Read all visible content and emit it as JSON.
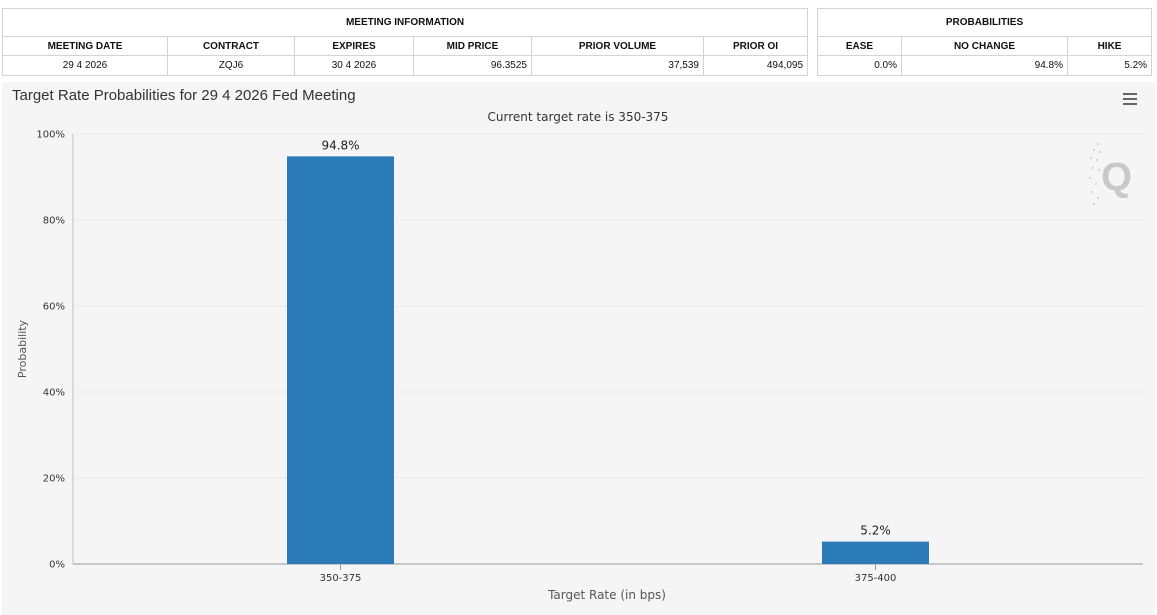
{
  "meeting_info": {
    "title": "MEETING INFORMATION",
    "columns": [
      "MEETING DATE",
      "CONTRACT",
      "EXPIRES",
      "MID PRICE",
      "PRIOR VOLUME",
      "PRIOR OI"
    ],
    "row": [
      "29 4 2026",
      "ZQJ6",
      "30 4 2026",
      "96.3525",
      "37,539",
      "494,095"
    ]
  },
  "probabilities": {
    "title": "PROBABILITIES",
    "columns": [
      "EASE",
      "NO CHANGE",
      "HIKE"
    ],
    "row": [
      "0.0%",
      "94.8%",
      "5.2%"
    ]
  },
  "chart_title": "Target Rate Probabilities for 29 4 2026 Fed Meeting",
  "watermark_letter": "Q",
  "chart_data": {
    "type": "bar",
    "subtitle": "Current target rate is 350-375",
    "categories": [
      "350-375",
      "375-400"
    ],
    "values": [
      94.8,
      5.2
    ],
    "data_labels": [
      "94.8%",
      "5.2%"
    ],
    "xlabel": "Target Rate (in bps)",
    "ylabel": "Probability",
    "ylim": [
      0,
      100
    ],
    "yticks": [
      "0%",
      "20%",
      "40%",
      "60%",
      "80%",
      "100%"
    ],
    "grid": true,
    "bar_color": "#2b7bb9"
  }
}
